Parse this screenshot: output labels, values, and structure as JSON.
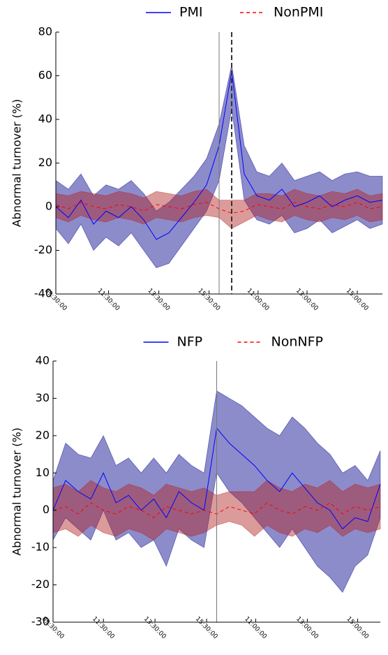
{
  "chart_data": [
    {
      "type": "line",
      "ylabel": "Abnormal turnover (%)",
      "x": [
        0,
        5,
        10,
        15,
        20,
        25,
        30,
        35,
        40,
        45,
        50,
        55,
        60,
        65,
        70,
        75,
        80,
        85,
        90,
        95,
        100,
        105,
        110,
        115,
        120,
        125,
        130
      ],
      "xlim": [
        0,
        130
      ],
      "ylim": [
        -40,
        80
      ],
      "yticks": [
        -40,
        -20,
        0,
        20,
        40,
        60,
        80
      ],
      "xticks": [
        {
          "value": 0,
          "label": "09:30:00"
        },
        {
          "value": 21,
          "label": "11:30:00"
        },
        {
          "value": 41,
          "label": "13:30:00"
        },
        {
          "value": 61,
          "label": "15:30:00"
        },
        {
          "value": 80.5,
          "label": "11:00:00"
        },
        {
          "value": 100,
          "label": "13:00:00"
        },
        {
          "value": 120,
          "label": "15:00:00"
        }
      ],
      "vlines": [
        {
          "x": 65,
          "style": "solid"
        },
        {
          "x": 70,
          "style": "dashed"
        }
      ],
      "legend": "top",
      "series": [
        {
          "name": "PMI",
          "color": "#0000ff",
          "band_color": "#00008b",
          "dashed": false,
          "values": [
            0,
            -5,
            3,
            -8,
            -2,
            -5,
            0,
            -6,
            -15,
            -12,
            -5,
            2,
            10,
            28,
            62,
            15,
            5,
            3,
            8,
            0,
            2,
            5,
            0,
            3,
            5,
            2,
            3
          ],
          "lower": [
            -10,
            -17,
            -8,
            -20,
            -14,
            -18,
            -12,
            -20,
            -28,
            -26,
            -18,
            -10,
            -2,
            12,
            45,
            3,
            -6,
            -8,
            -4,
            -12,
            -10,
            -6,
            -12,
            -9,
            -6,
            -10,
            -8
          ],
          "upper": [
            12,
            8,
            15,
            5,
            10,
            8,
            12,
            6,
            -2,
            2,
            8,
            14,
            22,
            38,
            65,
            28,
            16,
            14,
            20,
            12,
            14,
            16,
            12,
            15,
            16,
            14,
            14
          ]
        },
        {
          "name": "NonPMI",
          "color": "#ff0000",
          "band_color": "#b22222",
          "dashed": true,
          "values": [
            1,
            -1,
            2,
            0,
            -1,
            1,
            0,
            -2,
            1,
            0,
            -1,
            1,
            2,
            -1,
            -3,
            -2,
            1,
            0,
            -1,
            2,
            0,
            -1,
            1,
            0,
            2,
            -1,
            0
          ],
          "lower": [
            -5,
            -7,
            -4,
            -6,
            -7,
            -5,
            -6,
            -8,
            -5,
            -6,
            -7,
            -5,
            -4,
            -5,
            -10,
            -7,
            -4,
            -6,
            -7,
            -4,
            -6,
            -7,
            -5,
            -6,
            -4,
            -7,
            -6
          ],
          "upper": [
            6,
            5,
            7,
            6,
            5,
            7,
            6,
            4,
            7,
            6,
            5,
            7,
            8,
            3,
            3,
            3,
            6,
            6,
            5,
            8,
            6,
            5,
            7,
            6,
            8,
            5,
            6
          ]
        }
      ]
    },
    {
      "type": "line",
      "ylabel": "Abnormal turnover (%)",
      "x": [
        0,
        5,
        10,
        15,
        20,
        25,
        30,
        35,
        40,
        45,
        50,
        55,
        60,
        65,
        70,
        75,
        80,
        85,
        90,
        95,
        100,
        105,
        110,
        115,
        120,
        125,
        130
      ],
      "xlim": [
        0,
        130
      ],
      "ylim": [
        -30,
        40
      ],
      "yticks": [
        -30,
        -20,
        -10,
        0,
        10,
        20,
        30,
        40
      ],
      "xticks": [
        {
          "value": 0,
          "label": "09:30:00"
        },
        {
          "value": 20,
          "label": "11:30:00"
        },
        {
          "value": 40.5,
          "label": "13:30:00"
        },
        {
          "value": 61,
          "label": "15:30:00"
        },
        {
          "value": 80.5,
          "label": "11:00:00"
        },
        {
          "value": 101,
          "label": "13:00:00"
        },
        {
          "value": 121,
          "label": "15:00:00"
        }
      ],
      "vlines": [
        {
          "x": 65,
          "style": "solid"
        }
      ],
      "legend": "top",
      "series": [
        {
          "name": "NFP",
          "color": "#0000ff",
          "band_color": "#00008b",
          "dashed": false,
          "values": [
            0,
            8,
            5,
            3,
            10,
            2,
            4,
            0,
            3,
            -2,
            5,
            2,
            0,
            22,
            18,
            15,
            12,
            8,
            5,
            10,
            6,
            2,
            0,
            -5,
            -2,
            -3,
            7
          ],
          "lower": [
            -8,
            -2,
            -5,
            -8,
            0,
            -8,
            -6,
            -10,
            -8,
            -15,
            -5,
            -8,
            -10,
            10,
            5,
            2,
            -2,
            -6,
            -10,
            -5,
            -10,
            -15,
            -18,
            -22,
            -15,
            -12,
            -2
          ],
          "upper": [
            8,
            18,
            15,
            14,
            20,
            12,
            14,
            10,
            14,
            10,
            15,
            12,
            10,
            32,
            30,
            28,
            25,
            22,
            20,
            25,
            22,
            18,
            15,
            10,
            12,
            8,
            16
          ]
        },
        {
          "name": "NonNFP",
          "color": "#ff0000",
          "band_color": "#b22222",
          "dashed": true,
          "values": [
            0,
            1,
            -1,
            2,
            0,
            -1,
            1,
            0,
            -2,
            1,
            0,
            -1,
            0,
            -1,
            1,
            0,
            -1,
            2,
            0,
            -1,
            1,
            0,
            2,
            -1,
            1,
            0,
            1
          ],
          "lower": [
            -6,
            -5,
            -7,
            -4,
            -6,
            -7,
            -5,
            -6,
            -8,
            -5,
            -6,
            -7,
            -6,
            -4,
            -3,
            -4,
            -7,
            -4,
            -6,
            -7,
            -5,
            -6,
            -4,
            -7,
            -5,
            -6,
            -5
          ],
          "upper": [
            6,
            7,
            5,
            8,
            6,
            5,
            7,
            6,
            4,
            7,
            6,
            5,
            6,
            4,
            5,
            5,
            5,
            8,
            6,
            5,
            7,
            6,
            8,
            5,
            7,
            6,
            7
          ]
        }
      ]
    }
  ]
}
